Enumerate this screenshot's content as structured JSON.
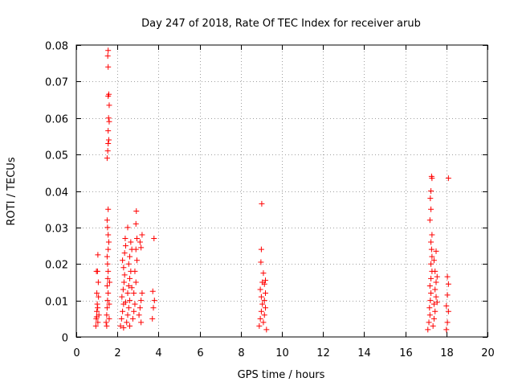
{
  "chart_data": {
    "type": "scatter",
    "title": "Day 247 of 2018, Rate Of TEC Index for receiver arub",
    "xlabel": "GPS time / hours",
    "ylabel": "ROTI / TECUs",
    "xlim": [
      0,
      20
    ],
    "ylim": [
      0,
      0.08
    ],
    "grid": true,
    "marker": "+",
    "color": "#ff0000",
    "xticks": [
      0,
      2,
      4,
      6,
      8,
      10,
      12,
      14,
      16,
      18,
      20
    ],
    "xtick_labels": [
      "0",
      "2",
      "4",
      "6",
      "8",
      "10",
      "12",
      "14",
      "16",
      "18",
      "20"
    ],
    "yticks": [
      0,
      0.01,
      0.02,
      0.03,
      0.04,
      0.05,
      0.06,
      0.07,
      0.08
    ],
    "ytick_labels": [
      "0",
      "0.01",
      "0.02",
      "0.03",
      "0.04",
      "0.05",
      "0.06",
      "0.07",
      "0.08"
    ],
    "series": [
      {
        "name": "ROTI",
        "points": [
          [
            0.95,
            0.003
          ],
          [
            0.97,
            0.005
          ],
          [
            1.0,
            0.007
          ],
          [
            1.02,
            0.009
          ],
          [
            1.05,
            0.004
          ],
          [
            0.98,
            0.018
          ],
          [
            1.03,
            0.018
          ],
          [
            1.05,
            0.0225
          ],
          [
            1.07,
            0.015
          ],
          [
            1.08,
            0.011
          ],
          [
            1.0,
            0.012
          ],
          [
            1.1,
            0.006
          ],
          [
            1.04,
            0.008
          ],
          [
            0.99,
            0.0055
          ],
          [
            1.45,
            0.004
          ],
          [
            1.48,
            0.006
          ],
          [
            1.5,
            0.008
          ],
          [
            1.52,
            0.01
          ],
          [
            1.55,
            0.012
          ],
          [
            1.5,
            0.014
          ],
          [
            1.53,
            0.016
          ],
          [
            1.55,
            0.018
          ],
          [
            1.52,
            0.02
          ],
          [
            1.5,
            0.022
          ],
          [
            1.55,
            0.024
          ],
          [
            1.58,
            0.026
          ],
          [
            1.55,
            0.028
          ],
          [
            1.52,
            0.03
          ],
          [
            1.5,
            0.032
          ],
          [
            1.55,
            0.035
          ],
          [
            1.5,
            0.049
          ],
          [
            1.53,
            0.051
          ],
          [
            1.55,
            0.053
          ],
          [
            1.58,
            0.054
          ],
          [
            1.55,
            0.0565
          ],
          [
            1.6,
            0.059
          ],
          [
            1.57,
            0.06
          ],
          [
            1.6,
            0.0635
          ],
          [
            1.55,
            0.066
          ],
          [
            1.58,
            0.0665
          ],
          [
            1.55,
            0.074
          ],
          [
            1.53,
            0.077
          ],
          [
            1.55,
            0.0785
          ],
          [
            1.6,
            0.009
          ],
          [
            1.62,
            0.015
          ],
          [
            1.48,
            0.003
          ],
          [
            1.6,
            0.005
          ],
          [
            2.15,
            0.003
          ],
          [
            2.2,
            0.005
          ],
          [
            2.25,
            0.007
          ],
          [
            2.3,
            0.009
          ],
          [
            2.22,
            0.011
          ],
          [
            2.28,
            0.013
          ],
          [
            2.32,
            0.015
          ],
          [
            2.35,
            0.017
          ],
          [
            2.3,
            0.019
          ],
          [
            2.25,
            0.021
          ],
          [
            2.35,
            0.023
          ],
          [
            2.4,
            0.025
          ],
          [
            2.38,
            0.027
          ],
          [
            2.45,
            0.004
          ],
          [
            2.5,
            0.006
          ],
          [
            2.55,
            0.008
          ],
          [
            2.6,
            0.01
          ],
          [
            2.5,
            0.012
          ],
          [
            2.55,
            0.014
          ],
          [
            2.6,
            0.016
          ],
          [
            2.65,
            0.018
          ],
          [
            2.55,
            0.02
          ],
          [
            2.6,
            0.022
          ],
          [
            2.7,
            0.024
          ],
          [
            2.65,
            0.026
          ],
          [
            2.5,
            0.03
          ],
          [
            2.75,
            0.005
          ],
          [
            2.8,
            0.007
          ],
          [
            2.85,
            0.009
          ],
          [
            2.8,
            0.012
          ],
          [
            2.9,
            0.015
          ],
          [
            2.85,
            0.018
          ],
          [
            2.95,
            0.021
          ],
          [
            2.9,
            0.024
          ],
          [
            2.95,
            0.027
          ],
          [
            2.9,
            0.031
          ],
          [
            2.92,
            0.0345
          ],
          [
            3.05,
            0.006
          ],
          [
            3.1,
            0.008
          ],
          [
            3.15,
            0.01
          ],
          [
            3.2,
            0.012
          ],
          [
            3.15,
            0.004
          ],
          [
            3.1,
            0.026
          ],
          [
            3.2,
            0.028
          ],
          [
            3.15,
            0.0245
          ],
          [
            2.3,
            0.0025
          ],
          [
            2.6,
            0.003
          ],
          [
            2.4,
            0.0095
          ],
          [
            2.7,
            0.0135
          ],
          [
            3.7,
            0.005
          ],
          [
            3.75,
            0.008
          ],
          [
            3.8,
            0.01
          ],
          [
            3.72,
            0.0125
          ],
          [
            3.78,
            0.027
          ],
          [
            8.9,
            0.003
          ],
          [
            8.95,
            0.005
          ],
          [
            9.0,
            0.007
          ],
          [
            9.05,
            0.009
          ],
          [
            9.0,
            0.011
          ],
          [
            8.95,
            0.013
          ],
          [
            9.05,
            0.015
          ],
          [
            8.98,
            0.0205
          ],
          [
            9.0,
            0.024
          ],
          [
            9.02,
            0.0365
          ],
          [
            9.1,
            0.004
          ],
          [
            9.15,
            0.006
          ],
          [
            9.2,
            0.008
          ],
          [
            9.15,
            0.01
          ],
          [
            9.2,
            0.012
          ],
          [
            9.15,
            0.0145
          ],
          [
            9.2,
            0.0155
          ],
          [
            9.25,
            0.002
          ],
          [
            9.1,
            0.0175
          ],
          [
            17.1,
            0.002
          ],
          [
            17.15,
            0.004
          ],
          [
            17.2,
            0.006
          ],
          [
            17.18,
            0.008
          ],
          [
            17.22,
            0.01
          ],
          [
            17.25,
            0.012
          ],
          [
            17.2,
            0.014
          ],
          [
            17.25,
            0.016
          ],
          [
            17.3,
            0.018
          ],
          [
            17.25,
            0.02
          ],
          [
            17.3,
            0.022
          ],
          [
            17.28,
            0.024
          ],
          [
            17.25,
            0.026
          ],
          [
            17.3,
            0.028
          ],
          [
            17.2,
            0.032
          ],
          [
            17.25,
            0.035
          ],
          [
            17.22,
            0.038
          ],
          [
            17.25,
            0.04
          ],
          [
            17.3,
            0.0435
          ],
          [
            17.28,
            0.044
          ],
          [
            17.35,
            0.003
          ],
          [
            17.4,
            0.005
          ],
          [
            17.45,
            0.007
          ],
          [
            17.4,
            0.009
          ],
          [
            17.5,
            0.011
          ],
          [
            17.45,
            0.013
          ],
          [
            17.5,
            0.015
          ],
          [
            17.45,
            0.018
          ],
          [
            17.4,
            0.021
          ],
          [
            17.5,
            0.0235
          ],
          [
            17.55,
            0.0095
          ],
          [
            17.55,
            0.0165
          ],
          [
            18.0,
            0.002
          ],
          [
            18.05,
            0.004
          ],
          [
            18.1,
            0.007
          ],
          [
            18.0,
            0.0085
          ],
          [
            18.05,
            0.0115
          ],
          [
            18.1,
            0.0145
          ],
          [
            18.05,
            0.0165
          ],
          [
            18.1,
            0.0435
          ]
        ]
      }
    ]
  }
}
